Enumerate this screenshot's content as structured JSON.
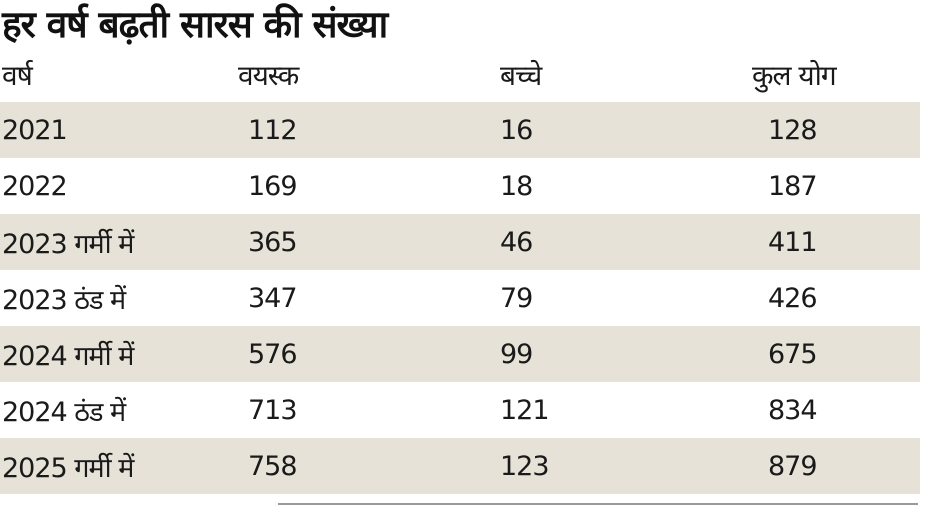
{
  "title": "हर वर्ष बढ़ती सारस की संख्या",
  "table": {
    "headers": [
      "वर्ष",
      "वयस्क",
      "बच्चे",
      "कुल योग"
    ],
    "rows": [
      [
        "2021",
        "112",
        "16",
        "128"
      ],
      [
        "2022",
        "169",
        "18",
        "187"
      ],
      [
        "2023 गर्मी में",
        "365",
        "46",
        "411"
      ],
      [
        "2023 ठंड में",
        "347",
        "79",
        "426"
      ],
      [
        "2024 गर्मी में",
        "576",
        "99",
        "675"
      ],
      [
        "2024 ठंड में",
        "713",
        "121",
        "834"
      ],
      [
        "2025 गर्मी में",
        "758",
        "123",
        "879"
      ]
    ]
  },
  "colors": {
    "row_shade": "#e6e2d8",
    "text": "#1a1a1a"
  }
}
